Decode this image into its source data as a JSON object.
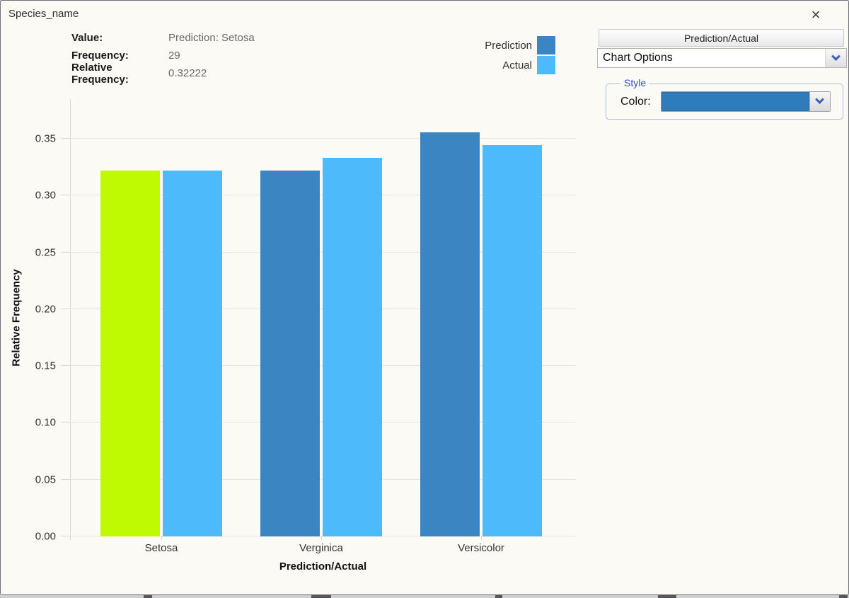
{
  "window": {
    "title": "Species_name"
  },
  "icons": {
    "close": "×"
  },
  "info_panel": {
    "rows": [
      {
        "label": "Value:",
        "value": "Prediction: Setosa"
      },
      {
        "label": "Frequency:",
        "value": "29"
      },
      {
        "label": "Relative Frequency:",
        "value": "0.32222"
      }
    ]
  },
  "legend": {
    "items": [
      {
        "label": "Prediction",
        "color": "#3a85c2"
      },
      {
        "label": "Actual",
        "color": "#4dbafc"
      }
    ]
  },
  "chart_data": {
    "type": "bar",
    "title": "Species_name",
    "categories": [
      "Setosa",
      "Verginica",
      "Versicolor"
    ],
    "series": [
      {
        "name": "Prediction",
        "color": "#3a85c2",
        "values": [
          0.32222,
          0.32222,
          0.35556
        ]
      },
      {
        "name": "Actual",
        "color": "#4dbafc",
        "values": [
          0.32222,
          0.33333,
          0.34444
        ]
      }
    ],
    "highlight": {
      "series": "Prediction",
      "category": "Setosa",
      "color": "#c0fa02"
    },
    "xlabel": "Prediction/Actual",
    "ylabel": "Relative Frequency",
    "ylim": [
      0,
      0.385
    ],
    "yticks": [
      0,
      0.05,
      0.1,
      0.15,
      0.2,
      0.25,
      0.3,
      0.35
    ],
    "grid": true,
    "legend_position": "top-right"
  },
  "right_panel": {
    "header_button": "Prediction/Actual",
    "chart_options_dropdown": {
      "value": "Chart Options"
    },
    "style_group": {
      "legend": "Style",
      "color_label": "Color:",
      "selected_color": "#2e7cba"
    }
  }
}
